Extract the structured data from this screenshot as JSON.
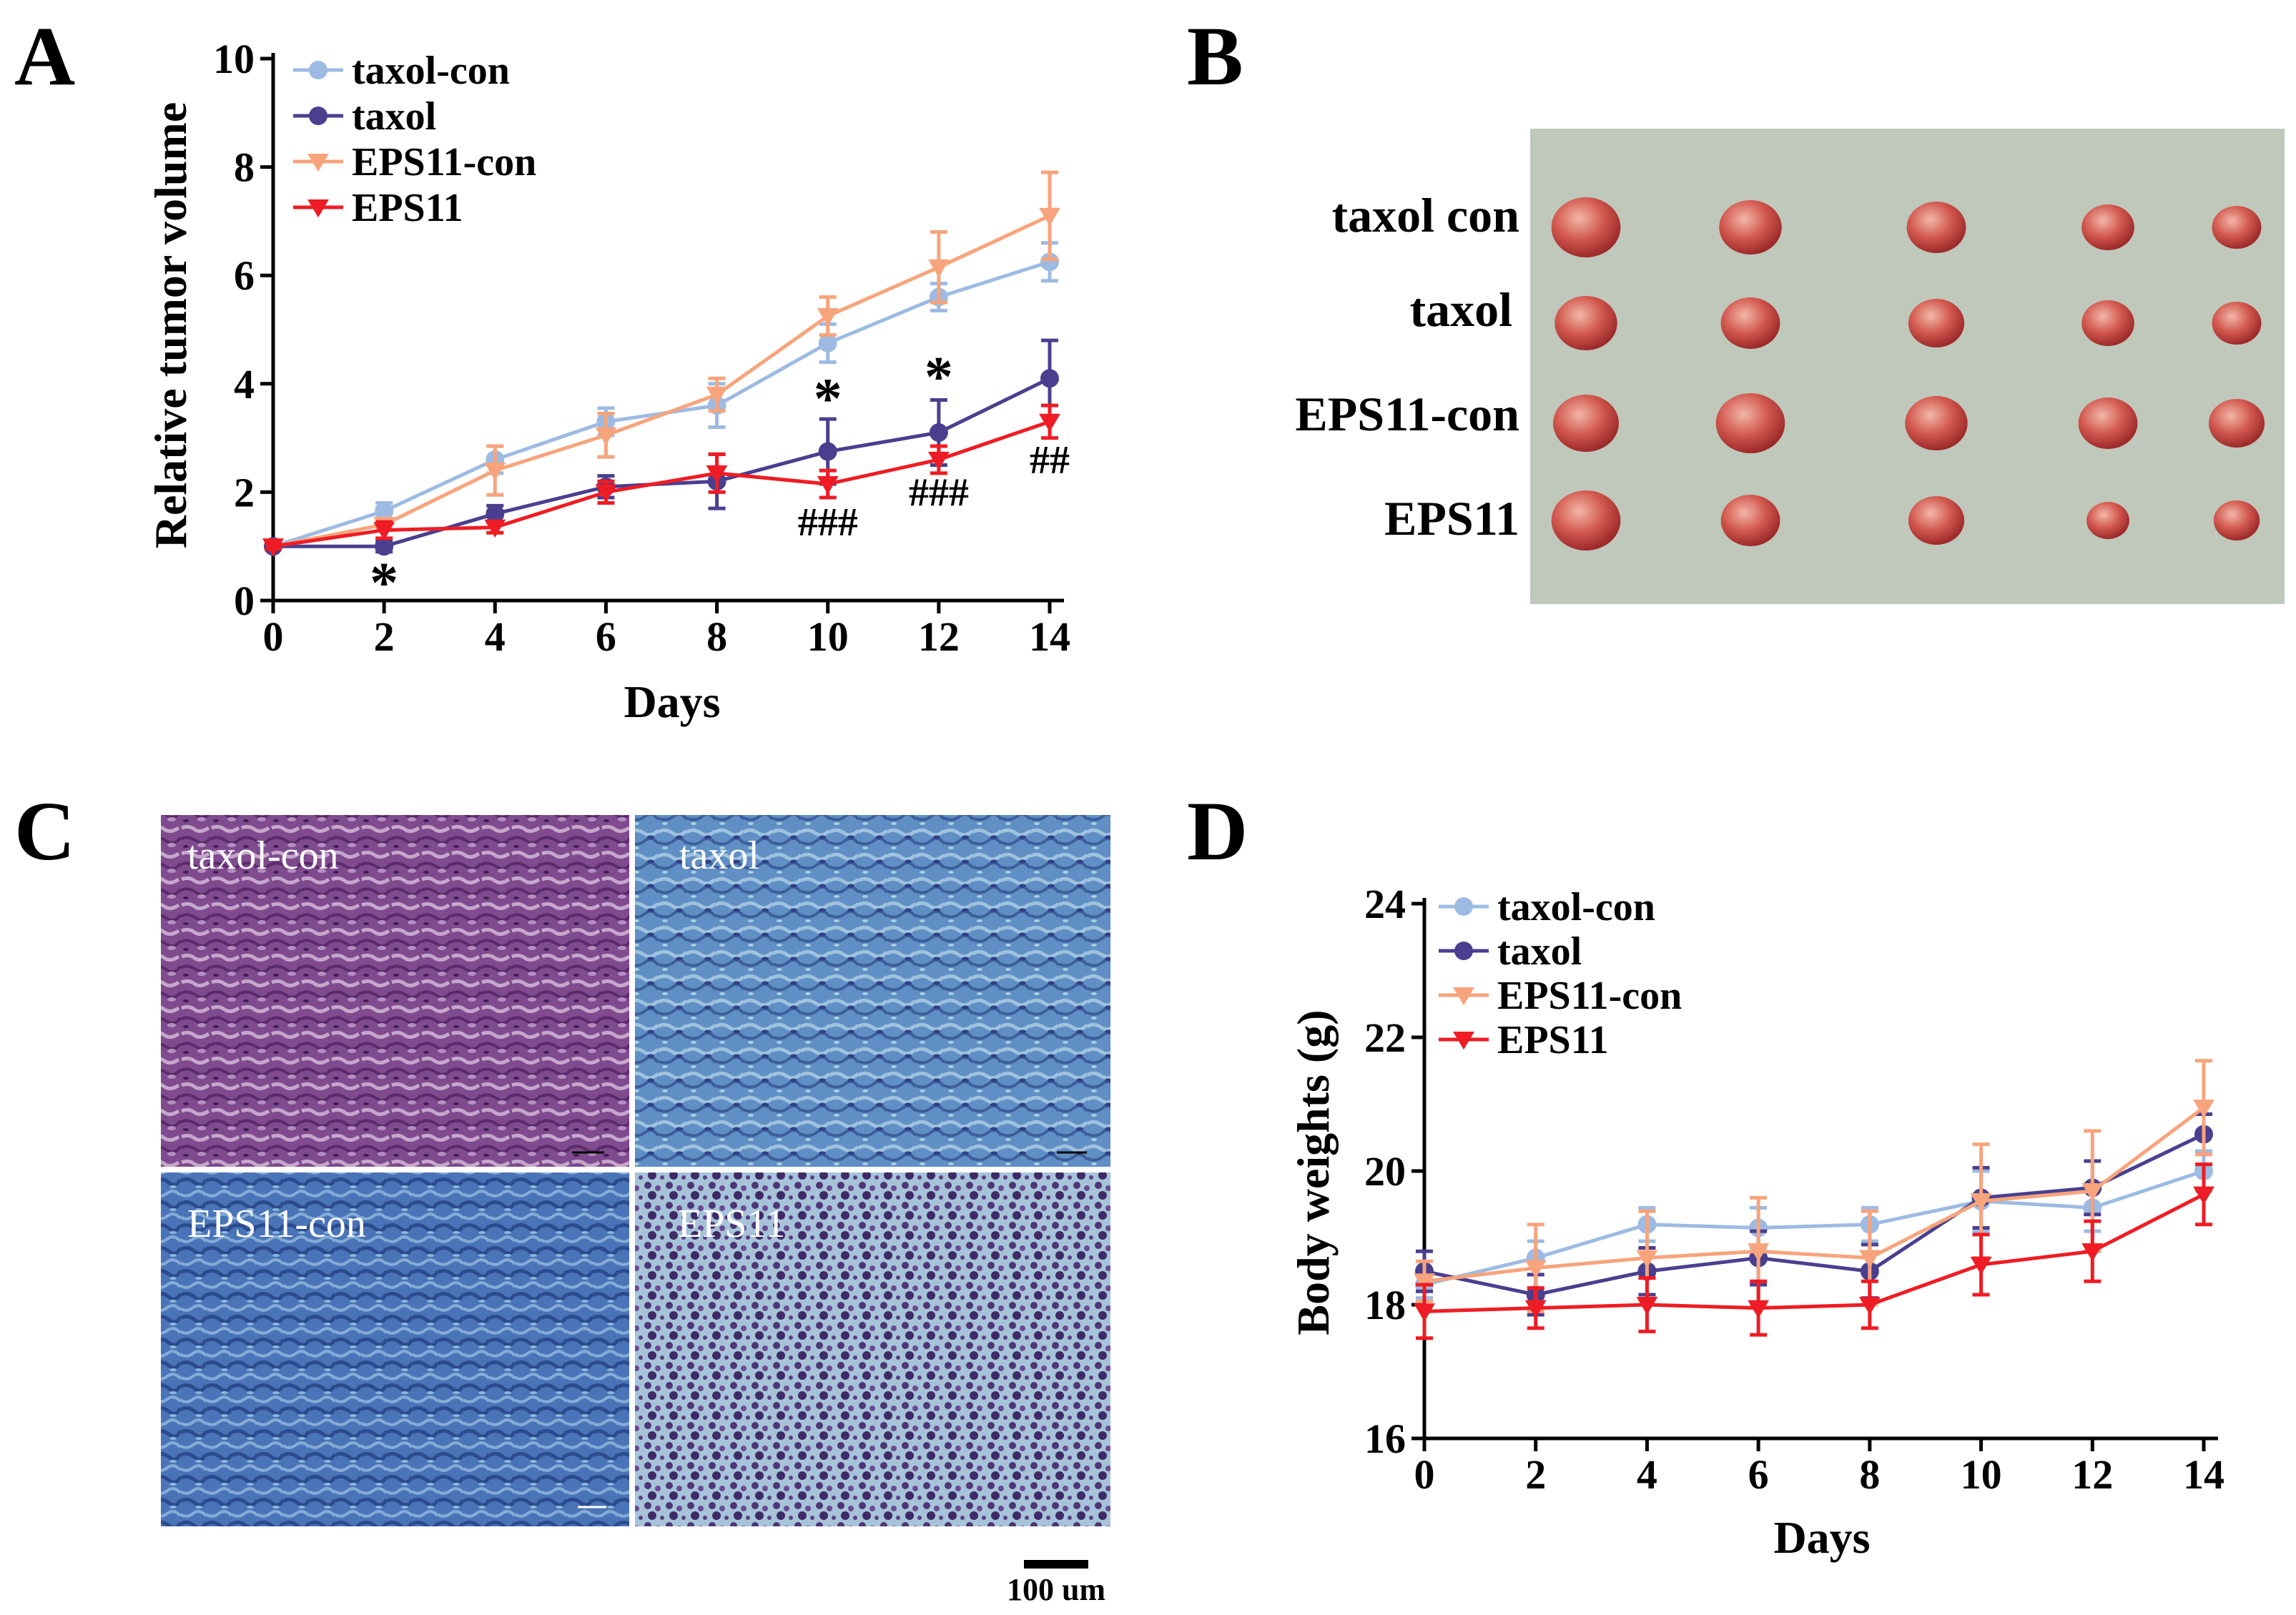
{
  "panels": {
    "a": "A",
    "b": "B",
    "c": "C",
    "d": "D"
  },
  "chart_data": [
    {
      "panel": "A",
      "type": "line",
      "xlabel": "Days",
      "ylabel": "Relative tumor volume",
      "xlim": [
        0,
        14
      ],
      "ylim": [
        0,
        10
      ],
      "xticks": [
        0,
        2,
        4,
        6,
        8,
        10,
        12,
        14
      ],
      "yticks": [
        0,
        2,
        4,
        6,
        8,
        10
      ],
      "grid": false,
      "legend": "top-left",
      "x": [
        0,
        2,
        4,
        6,
        8,
        10,
        12,
        14
      ],
      "series": [
        {
          "name": "taxol-con",
          "color": "#9dbbe2",
          "marker": "circle",
          "values": [
            1.0,
            1.65,
            2.6,
            3.3,
            3.6,
            4.75,
            5.6,
            6.25
          ],
          "errors": [
            0.05,
            0.15,
            0.25,
            0.25,
            0.4,
            0.35,
            0.25,
            0.35
          ]
        },
        {
          "name": "taxol",
          "color": "#4a3f8f",
          "marker": "circle",
          "values": [
            1.0,
            1.0,
            1.6,
            2.1,
            2.2,
            2.75,
            3.1,
            4.1
          ],
          "errors": [
            0.05,
            0.1,
            0.15,
            0.2,
            0.5,
            0.6,
            0.6,
            0.7
          ]
        },
        {
          "name": "EPS11-con",
          "color": "#f7a47c",
          "marker": "triangle-down",
          "values": [
            1.0,
            1.4,
            2.4,
            3.05,
            3.8,
            5.25,
            6.15,
            7.1
          ],
          "errors": [
            0.05,
            0.1,
            0.45,
            0.4,
            0.3,
            0.35,
            0.65,
            0.8
          ]
        },
        {
          "name": "EPS11",
          "color": "#ee1c24",
          "marker": "triangle-down",
          "values": [
            1.0,
            1.3,
            1.35,
            2.0,
            2.35,
            2.15,
            2.6,
            3.3
          ],
          "errors": [
            0.05,
            0.15,
            0.1,
            0.2,
            0.35,
            0.25,
            0.25,
            0.3
          ]
        }
      ],
      "annotations": [
        {
          "x": 2,
          "y": 0.5,
          "text": "*"
        },
        {
          "x": 10,
          "y": 3.9,
          "text": "*"
        },
        {
          "x": 12,
          "y": 4.3,
          "text": "*"
        },
        {
          "x": 10,
          "y": 1.2,
          "text": "###"
        },
        {
          "x": 12,
          "y": 1.75,
          "text": "###"
        },
        {
          "x": 14,
          "y": 2.35,
          "text": "##"
        }
      ]
    },
    {
      "panel": "D",
      "type": "line",
      "xlabel": "Days",
      "ylabel": "Body weights (g)",
      "xlim": [
        0,
        14
      ],
      "ylim": [
        16,
        24
      ],
      "xticks": [
        0,
        2,
        4,
        6,
        8,
        10,
        12,
        14
      ],
      "yticks": [
        16,
        18,
        20,
        22,
        24
      ],
      "grid": false,
      "legend": "top-left",
      "x": [
        0,
        2,
        4,
        6,
        8,
        10,
        12,
        14
      ],
      "series": [
        {
          "name": "taxol-con",
          "color": "#9dbbe2",
          "marker": "circle",
          "values": [
            18.3,
            18.7,
            19.2,
            19.15,
            19.2,
            19.55,
            19.45,
            20.0
          ],
          "errors": [
            0.2,
            0.25,
            0.25,
            0.3,
            0.25,
            0.45,
            0.35,
            0.3
          ]
        },
        {
          "name": "taxol",
          "color": "#4a3f8f",
          "marker": "circle",
          "values": [
            18.5,
            18.15,
            18.5,
            18.7,
            18.5,
            19.6,
            19.75,
            20.55
          ],
          "errors": [
            0.3,
            0.3,
            0.35,
            0.4,
            0.4,
            0.45,
            0.4,
            0.3
          ]
        },
        {
          "name": "EPS11-con",
          "color": "#f7a47c",
          "marker": "triangle-down",
          "values": [
            18.35,
            18.55,
            18.7,
            18.8,
            18.7,
            19.55,
            19.7,
            20.95
          ],
          "errors": [
            0.3,
            0.65,
            0.7,
            0.8,
            0.7,
            0.85,
            0.9,
            0.7
          ]
        },
        {
          "name": "EPS11",
          "color": "#ee1c24",
          "marker": "triangle-down",
          "values": [
            17.9,
            17.95,
            18.0,
            17.95,
            18.0,
            18.6,
            18.8,
            19.65
          ],
          "errors": [
            0.4,
            0.3,
            0.4,
            0.4,
            0.35,
            0.45,
            0.45,
            0.45
          ]
        }
      ]
    }
  ],
  "photo": {
    "rows": [
      "taxol  con",
      "taxol",
      "EPS11-con",
      "EPS11"
    ]
  },
  "micrographs": {
    "labels": [
      "taxol-con",
      "taxol",
      "EPS11-con",
      "EPS11"
    ],
    "scale_bar": "100 um"
  }
}
